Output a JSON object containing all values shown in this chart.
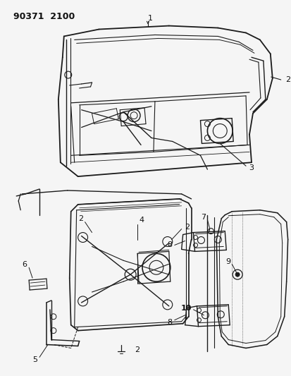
{
  "title_code": "90371  2100",
  "bg_color": "#f5f5f5",
  "line_color": "#1a1a1a",
  "label_color": "#111111",
  "fig_width": 4.14,
  "fig_height": 5.33,
  "dpi": 100
}
